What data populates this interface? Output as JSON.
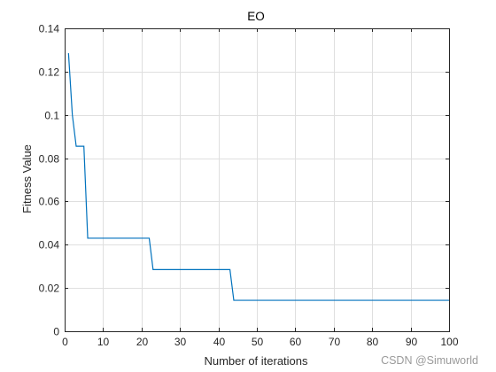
{
  "chart_data": {
    "type": "line",
    "title": "EO",
    "xlabel": "Number of iterations",
    "ylabel": "Fitness Value",
    "xlim": [
      0,
      100
    ],
    "ylim": [
      0,
      0.14
    ],
    "xticks": [
      0,
      10,
      20,
      30,
      40,
      50,
      60,
      70,
      80,
      90,
      100
    ],
    "yticks": [
      0,
      0.02,
      0.04,
      0.06,
      0.08,
      0.1,
      0.12,
      0.14
    ],
    "xtick_labels": [
      "0",
      "10",
      "20",
      "30",
      "40",
      "50",
      "60",
      "70",
      "80",
      "90",
      "100"
    ],
    "ytick_labels": [
      "0",
      "0.02",
      "0.04",
      "0.06",
      "0.08",
      "0.1",
      "0.12",
      "0.14"
    ],
    "grid": true,
    "series": [
      {
        "color": "#0072bd",
        "x": [
          1,
          2,
          3,
          4,
          5,
          6,
          7,
          8,
          9,
          10,
          11,
          12,
          13,
          14,
          15,
          16,
          17,
          18,
          19,
          20,
          21,
          22,
          23,
          24,
          25,
          26,
          27,
          28,
          29,
          30,
          31,
          32,
          33,
          34,
          35,
          36,
          37,
          38,
          39,
          40,
          41,
          42,
          43,
          44,
          45,
          46,
          47,
          48,
          49,
          50,
          51,
          52,
          53,
          54,
          55,
          56,
          57,
          58,
          59,
          60,
          61,
          62,
          63,
          64,
          65,
          66,
          67,
          68,
          69,
          70,
          71,
          72,
          73,
          74,
          75,
          76,
          77,
          78,
          79,
          80,
          81,
          82,
          83,
          84,
          85,
          86,
          87,
          88,
          89,
          90,
          91,
          92,
          93,
          94,
          95,
          96,
          97,
          98,
          99,
          100
        ],
        "y": [
          0.1285,
          0.1,
          0.0855,
          0.0855,
          0.0855,
          0.043,
          0.043,
          0.043,
          0.043,
          0.043,
          0.043,
          0.043,
          0.043,
          0.043,
          0.043,
          0.043,
          0.043,
          0.043,
          0.043,
          0.043,
          0.043,
          0.043,
          0.0285,
          0.0285,
          0.0285,
          0.0285,
          0.0285,
          0.0285,
          0.0285,
          0.0285,
          0.0285,
          0.0285,
          0.0285,
          0.0285,
          0.0285,
          0.0285,
          0.0285,
          0.0285,
          0.0285,
          0.0285,
          0.0285,
          0.0285,
          0.0285,
          0.0143,
          0.0143,
          0.0143,
          0.0143,
          0.0143,
          0.0143,
          0.0143,
          0.0143,
          0.0143,
          0.0143,
          0.0143,
          0.0143,
          0.0143,
          0.0143,
          0.0143,
          0.0143,
          0.0143,
          0.0143,
          0.0143,
          0.0143,
          0.0143,
          0.0143,
          0.0143,
          0.0143,
          0.0143,
          0.0143,
          0.0143,
          0.0143,
          0.0143,
          0.0143,
          0.0143,
          0.0143,
          0.0143,
          0.0143,
          0.0143,
          0.0143,
          0.0143,
          0.0143,
          0.0143,
          0.0143,
          0.0143,
          0.0143,
          0.0143,
          0.0143,
          0.0143,
          0.0143,
          0.0143,
          0.0143,
          0.0143,
          0.0143,
          0.0143,
          0.0143,
          0.0143,
          0.0143,
          0.0143,
          0.0143,
          0.0143
        ]
      }
    ]
  },
  "watermark": "CSDN @Simuworld"
}
